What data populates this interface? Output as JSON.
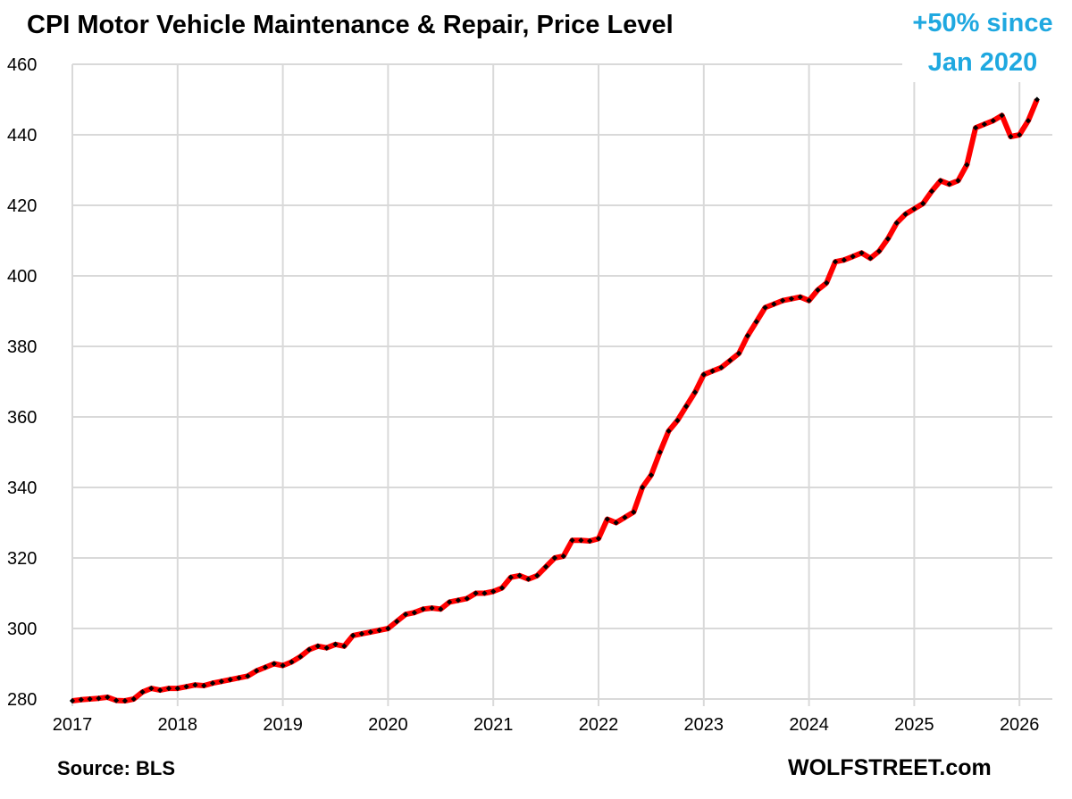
{
  "chart_data": {
    "type": "line",
    "title": "CPI Motor Vehicle Maintenance & Repair, Price Level",
    "annotation": [
      "+50% since",
      "Jan 2020"
    ],
    "source": "Source: BLS",
    "brand": "WOLFSTREET.com",
    "xlabel": "",
    "ylabel": "",
    "ylim": [
      280,
      460
    ],
    "yticks": [
      280,
      300,
      320,
      340,
      360,
      380,
      400,
      420,
      440,
      460
    ],
    "xticks": [
      "2017",
      "2018",
      "2019",
      "2020",
      "2021",
      "2022",
      "2023",
      "2024",
      "2025",
      "2026"
    ],
    "grid": true,
    "start": "2017-01",
    "frequency": "monthly",
    "colors": {
      "line": "#ff0000",
      "markers": "#000000",
      "annotation": "#1fa8e0",
      "grid": "#d9d9d9"
    },
    "series": [
      {
        "values": [
          279.5,
          279.8,
          280,
          280.2,
          280.5,
          279.6,
          279.5,
          280,
          282,
          283,
          282.5,
          283,
          283,
          283.5,
          284,
          283.8,
          284.5,
          285,
          285.5,
          286,
          286.5,
          288,
          289,
          290,
          289.5,
          290.5,
          292,
          294,
          295,
          294.5,
          295.5,
          295,
          298,
          298.5,
          299,
          299.5,
          300,
          302,
          304,
          304.5,
          305.5,
          305.8,
          305.5,
          307.5,
          308,
          308.5,
          310,
          310,
          310.5,
          311.5,
          314.5,
          315,
          314,
          315,
          317.5,
          320,
          320.5,
          325,
          325,
          324.8,
          325.5,
          331,
          330,
          331.5,
          333,
          340,
          343.5,
          350,
          356,
          359,
          363,
          367,
          372,
          373,
          374,
          376,
          378,
          383,
          387,
          391,
          392,
          393,
          393.5,
          394,
          393,
          396,
          398,
          404,
          404.5,
          405.5,
          406.5,
          405,
          407,
          410.5,
          415,
          417.5,
          419,
          420.5,
          424,
          427,
          426,
          427,
          431.5,
          442,
          443,
          444,
          445.5,
          439.5,
          440,
          444,
          450
        ]
      }
    ]
  }
}
